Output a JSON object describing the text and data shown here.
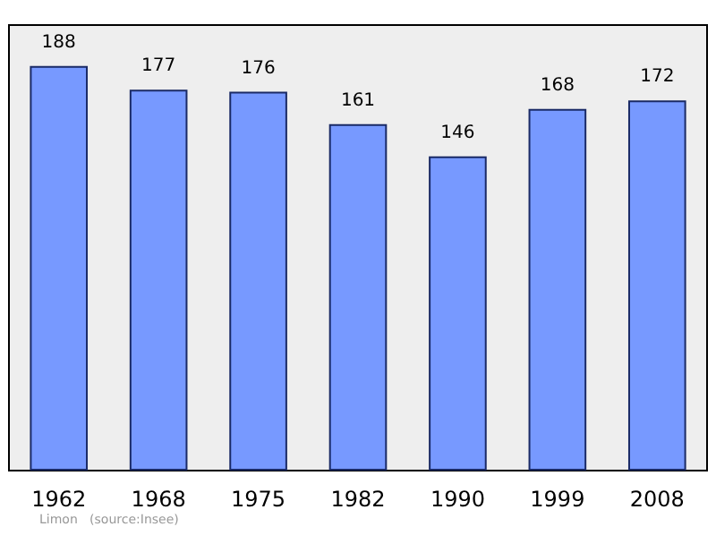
{
  "chart_data": {
    "type": "bar",
    "categories": [
      "1962",
      "1968",
      "1975",
      "1982",
      "1990",
      "1999",
      "2008"
    ],
    "values": [
      188,
      177,
      176,
      161,
      146,
      168,
      172
    ],
    "color": "#7799ff",
    "ylim": [
      0,
      207
    ],
    "data_labels": true,
    "annotations": [
      "Limon   (source:Insee)"
    ]
  }
}
